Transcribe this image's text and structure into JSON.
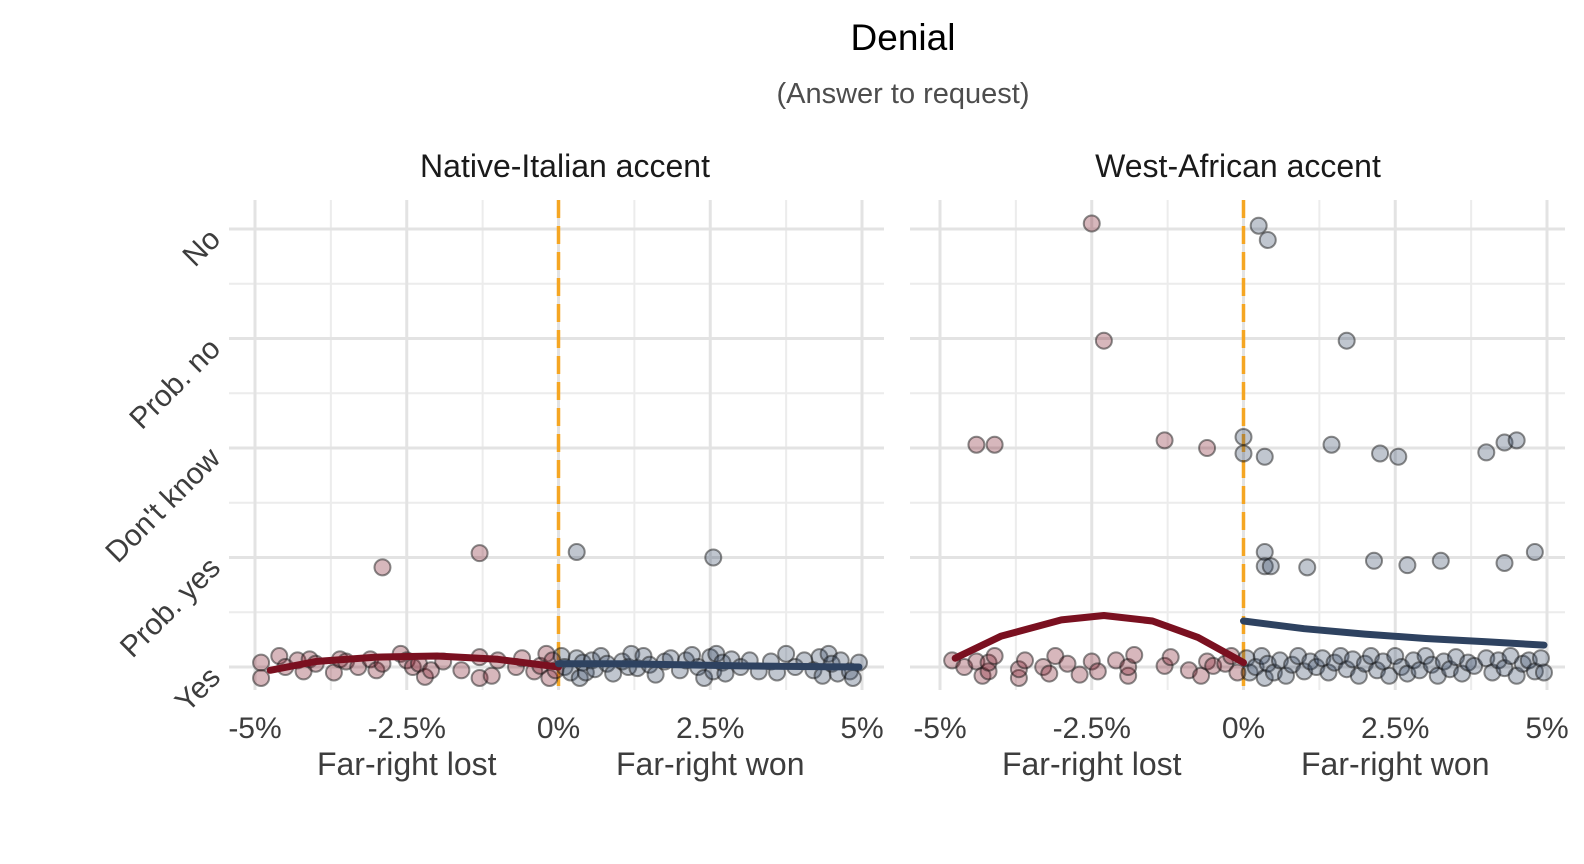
{
  "chart_data": {
    "type": "scatter",
    "title": "Denial",
    "subtitle": "(Answer to request)",
    "y_categories": [
      "Yes",
      "Prob. yes",
      "Don't know",
      "Prob. no",
      "No"
    ],
    "x_ticks": [
      -5,
      -2.5,
      0,
      2.5,
      5
    ],
    "x_tick_labels": [
      "-5%",
      "-2.5%",
      "0%",
      "2.5%",
      "5%"
    ],
    "xlim": [
      -5,
      5
    ],
    "cutoff": 0,
    "x_sublabels": [
      "Far-right lost",
      "Far-right won"
    ],
    "grid": true,
    "colors": {
      "lost": "#7a1020",
      "won": "#2e4260",
      "cutoff": "#f5a623"
    },
    "panels": [
      {
        "title": "Native-Italian accent",
        "points_lost": [
          [
            -4.9,
            0.04
          ],
          [
            -4.9,
            -0.1
          ],
          [
            -4.6,
            0.1
          ],
          [
            -4.5,
            0.0
          ],
          [
            -4.3,
            0.06
          ],
          [
            -4.2,
            -0.04
          ],
          [
            -4.1,
            0.07
          ],
          [
            -4.0,
            0.03
          ],
          [
            -3.7,
            -0.05
          ],
          [
            -3.6,
            0.07
          ],
          [
            -3.5,
            0.05
          ],
          [
            -3.3,
            0.0
          ],
          [
            -3.1,
            0.07
          ],
          [
            -3.0,
            -0.03
          ],
          [
            -2.9,
            0.03
          ],
          [
            -2.6,
            0.12
          ],
          [
            -2.5,
            0.06
          ],
          [
            -2.4,
            0.0
          ],
          [
            -2.3,
            0.03
          ],
          [
            -2.2,
            -0.09
          ],
          [
            -2.1,
            -0.03
          ],
          [
            -1.9,
            0.05
          ],
          [
            -1.6,
            -0.03
          ],
          [
            -1.3,
            0.09
          ],
          [
            -1.3,
            -0.1
          ],
          [
            -1.1,
            -0.08
          ],
          [
            -1.0,
            0.06
          ],
          [
            -0.7,
            0.0
          ],
          [
            -0.6,
            0.08
          ],
          [
            -0.4,
            -0.04
          ],
          [
            -0.3,
            0.01
          ],
          [
            -0.2,
            0.12
          ],
          [
            -0.15,
            -0.1
          ],
          [
            -0.1,
            0.06
          ],
          [
            -0.05,
            -0.03
          ],
          [
            -2.9,
            0.91
          ],
          [
            -1.3,
            1.04
          ]
        ],
        "points_won": [
          [
            0.05,
            0.1
          ],
          [
            0.1,
            0.0
          ],
          [
            0.2,
            -0.05
          ],
          [
            0.3,
            0.08
          ],
          [
            0.35,
            -0.1
          ],
          [
            0.4,
            0.04
          ],
          [
            0.45,
            -0.05
          ],
          [
            0.55,
            0.06
          ],
          [
            0.6,
            -0.02
          ],
          [
            0.7,
            0.1
          ],
          [
            0.8,
            0.03
          ],
          [
            0.9,
            -0.06
          ],
          [
            1.05,
            0.05
          ],
          [
            1.15,
            0.0
          ],
          [
            1.2,
            0.12
          ],
          [
            1.3,
            -0.01
          ],
          [
            1.4,
            0.1
          ],
          [
            1.5,
            0.02
          ],
          [
            1.6,
            -0.07
          ],
          [
            1.75,
            0.05
          ],
          [
            1.85,
            0.08
          ],
          [
            2.0,
            -0.03
          ],
          [
            2.1,
            0.06
          ],
          [
            2.2,
            0.11
          ],
          [
            2.3,
            0.0
          ],
          [
            2.4,
            -0.1
          ],
          [
            2.5,
            0.09
          ],
          [
            2.55,
            -0.04
          ],
          [
            2.6,
            0.12
          ],
          [
            2.7,
            0.04
          ],
          [
            2.75,
            -0.06
          ],
          [
            2.85,
            0.07
          ],
          [
            3.0,
            0.0
          ],
          [
            3.15,
            0.06
          ],
          [
            3.3,
            -0.04
          ],
          [
            3.5,
            0.05
          ],
          [
            3.6,
            -0.05
          ],
          [
            3.75,
            0.12
          ],
          [
            3.9,
            0.0
          ],
          [
            4.05,
            0.06
          ],
          [
            4.2,
            -0.03
          ],
          [
            4.3,
            0.09
          ],
          [
            4.35,
            -0.08
          ],
          [
            4.45,
            0.12
          ],
          [
            4.5,
            0.03
          ],
          [
            4.6,
            -0.06
          ],
          [
            4.65,
            0.06
          ],
          [
            4.8,
            -0.04
          ],
          [
            4.95,
            0.04
          ],
          [
            4.85,
            -0.1
          ],
          [
            0.3,
            1.05
          ],
          [
            2.55,
            1.0
          ]
        ],
        "fit_lost": [
          [
            -4.75,
            -0.03
          ],
          [
            -4.0,
            0.05
          ],
          [
            -3.0,
            0.09
          ],
          [
            -2.0,
            0.1
          ],
          [
            -1.0,
            0.07
          ],
          [
            0.0,
            0.0
          ]
        ],
        "fit_won": [
          [
            0.0,
            0.03
          ],
          [
            1.0,
            0.03
          ],
          [
            2.0,
            0.02
          ],
          [
            3.0,
            0.01
          ],
          [
            4.0,
            0.005
          ],
          [
            4.95,
            0.0
          ]
        ]
      },
      {
        "title": "West-African accent",
        "points_lost": [
          [
            -4.8,
            0.06
          ],
          [
            -4.6,
            0.0
          ],
          [
            -4.4,
            0.05
          ],
          [
            -4.3,
            -0.08
          ],
          [
            -4.2,
            -0.04
          ],
          [
            -4.2,
            0.04
          ],
          [
            -4.1,
            0.1
          ],
          [
            -3.7,
            -0.1
          ],
          [
            -3.7,
            -0.02
          ],
          [
            -3.6,
            0.06
          ],
          [
            -3.3,
            0.0
          ],
          [
            -3.2,
            -0.06
          ],
          [
            -3.1,
            0.1
          ],
          [
            -2.9,
            0.03
          ],
          [
            -2.7,
            -0.07
          ],
          [
            -2.5,
            0.05
          ],
          [
            -2.4,
            -0.04
          ],
          [
            -2.1,
            0.06
          ],
          [
            -1.9,
            -0.08
          ],
          [
            -1.9,
            0.0
          ],
          [
            -1.8,
            0.11
          ],
          [
            -1.3,
            0.01
          ],
          [
            -1.2,
            0.09
          ],
          [
            -0.9,
            -0.03
          ],
          [
            -0.7,
            -0.08
          ],
          [
            -0.6,
            0.05
          ],
          [
            -0.5,
            0.01
          ],
          [
            -0.3,
            0.03
          ],
          [
            -0.2,
            0.1
          ],
          [
            -0.1,
            -0.05
          ],
          [
            -4.4,
            2.03
          ],
          [
            -4.1,
            2.03
          ],
          [
            -1.3,
            2.07
          ],
          [
            -0.6,
            2.0
          ],
          [
            -2.3,
            2.98
          ],
          [
            -2.5,
            4.05
          ]
        ],
        "points_won": [
          [
            0.05,
            0.08
          ],
          [
            0.1,
            -0.05
          ],
          [
            0.2,
            0.0
          ],
          [
            0.3,
            0.1
          ],
          [
            0.35,
            -0.1
          ],
          [
            0.4,
            0.03
          ],
          [
            0.5,
            -0.05
          ],
          [
            0.6,
            0.06
          ],
          [
            0.7,
            -0.08
          ],
          [
            0.8,
            0.02
          ],
          [
            0.9,
            0.1
          ],
          [
            1.0,
            -0.04
          ],
          [
            1.1,
            0.05
          ],
          [
            1.2,
            0.0
          ],
          [
            1.3,
            0.08
          ],
          [
            1.4,
            -0.05
          ],
          [
            1.5,
            0.04
          ],
          [
            1.6,
            0.1
          ],
          [
            1.7,
            -0.02
          ],
          [
            1.8,
            0.07
          ],
          [
            1.9,
            -0.08
          ],
          [
            2.0,
            0.03
          ],
          [
            2.1,
            0.1
          ],
          [
            2.2,
            -0.03
          ],
          [
            2.3,
            0.05
          ],
          [
            2.4,
            -0.08
          ],
          [
            2.5,
            0.1
          ],
          [
            2.6,
            0.0
          ],
          [
            2.7,
            -0.06
          ],
          [
            2.8,
            0.06
          ],
          [
            2.9,
            -0.03
          ],
          [
            3.0,
            0.1
          ],
          [
            3.1,
            0.02
          ],
          [
            3.2,
            -0.08
          ],
          [
            3.3,
            0.05
          ],
          [
            3.4,
            -0.02
          ],
          [
            3.5,
            0.09
          ],
          [
            3.6,
            -0.06
          ],
          [
            3.7,
            0.04
          ],
          [
            3.8,
            0.01
          ],
          [
            4.0,
            0.08
          ],
          [
            4.1,
            -0.05
          ],
          [
            4.2,
            0.06
          ],
          [
            4.3,
            -0.01
          ],
          [
            4.4,
            0.1
          ],
          [
            4.5,
            -0.08
          ],
          [
            4.6,
            0.03
          ],
          [
            4.7,
            0.06
          ],
          [
            4.8,
            -0.04
          ],
          [
            4.9,
            0.08
          ],
          [
            4.95,
            -0.05
          ],
          [
            0.35,
            1.05
          ],
          [
            0.35,
            0.92
          ],
          [
            0.45,
            0.92
          ],
          [
            1.05,
            0.91
          ],
          [
            2.15,
            0.97
          ],
          [
            2.7,
            0.93
          ],
          [
            3.25,
            0.97
          ],
          [
            4.3,
            0.95
          ],
          [
            4.8,
            1.05
          ],
          [
            0.0,
            2.1
          ],
          [
            0.0,
            1.95
          ],
          [
            0.35,
            1.92
          ],
          [
            1.45,
            2.03
          ],
          [
            2.25,
            1.95
          ],
          [
            2.55,
            1.92
          ],
          [
            4.0,
            1.96
          ],
          [
            4.3,
            2.05
          ],
          [
            4.5,
            2.07
          ],
          [
            1.7,
            2.98
          ],
          [
            0.25,
            4.03
          ],
          [
            0.4,
            3.9
          ]
        ],
        "fit_lost": [
          [
            -4.75,
            0.08
          ],
          [
            -4.0,
            0.28
          ],
          [
            -3.0,
            0.43
          ],
          [
            -2.3,
            0.47
          ],
          [
            -1.5,
            0.42
          ],
          [
            -0.75,
            0.27
          ],
          [
            0.0,
            0.04
          ]
        ],
        "fit_won": [
          [
            0.0,
            0.42
          ],
          [
            1.0,
            0.35
          ],
          [
            2.0,
            0.3
          ],
          [
            3.0,
            0.26
          ],
          [
            4.0,
            0.23
          ],
          [
            4.95,
            0.2
          ]
        ]
      }
    ]
  }
}
